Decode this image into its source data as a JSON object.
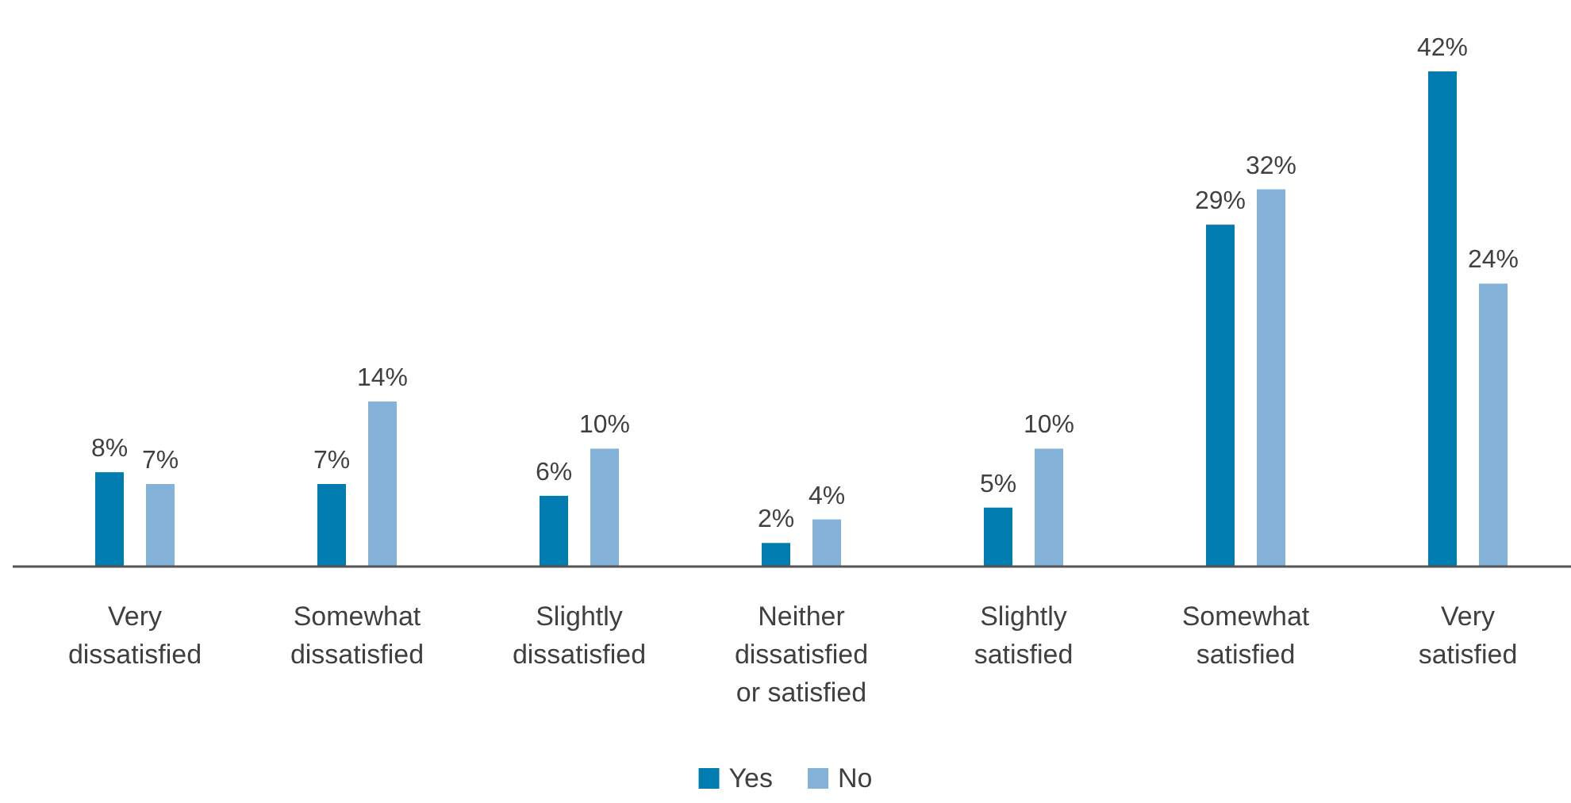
{
  "chart_data": {
    "type": "bar",
    "categories": [
      "Very dissatisfied",
      "Somewhat dissatisfied",
      "Slightly dissatisfied",
      "Neither dissatisfied or satisfied",
      "Slightly satisfied",
      "Somewhat satisfied",
      "Very satisfied"
    ],
    "series": [
      {
        "name": "Yes",
        "color": "#007cb0",
        "values": [
          8,
          7,
          6,
          2,
          5,
          29,
          42
        ],
        "value_labels": [
          "8%",
          "7%",
          "6%",
          "2%",
          "5%",
          "29%",
          "42%"
        ]
      },
      {
        "name": "No",
        "color": "#84b2d8",
        "values": [
          7,
          14,
          10,
          4,
          10,
          32,
          24
        ],
        "value_labels": [
          "7%",
          "14%",
          "10%",
          "4%",
          "10%",
          "32%",
          "24%"
        ]
      }
    ],
    "legend": "bottom"
  }
}
